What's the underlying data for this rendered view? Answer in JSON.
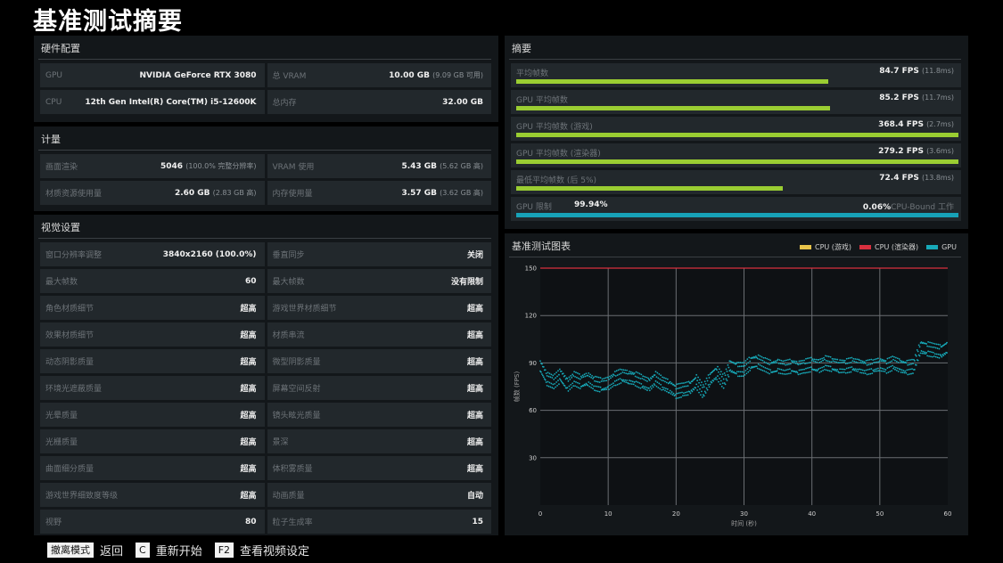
{
  "page_title": "基准测试摘要",
  "hardware": {
    "title": "硬件配置",
    "rows": [
      {
        "left_label": "GPU",
        "left_value": "NVIDIA GeForce RTX 3080",
        "left_sub": "",
        "right_label": "总 VRAM",
        "right_value": "10.00 GB",
        "right_sub": "(9.09 GB 可用)"
      },
      {
        "left_label": "CPU",
        "left_value": "12th Gen Intel(R) Core(TM) i5-12600K",
        "left_sub": "",
        "right_label": "总内存",
        "right_value": "32.00 GB",
        "right_sub": ""
      }
    ]
  },
  "metrics": {
    "title": "计量",
    "rows": [
      {
        "left_label": "画面渲染",
        "left_value": "5046",
        "left_sub": "(100.0% 完整分辨率)",
        "right_label": "VRAM 使用",
        "right_value": "5.43 GB",
        "right_sub": "(5.62 GB 高)"
      },
      {
        "left_label": "材质资源使用量",
        "left_value": "2.60 GB",
        "left_sub": "(2.83 GB 高)",
        "right_label": "内存使用量",
        "right_value": "3.57 GB",
        "right_sub": "(3.62 GB 高)"
      }
    ]
  },
  "visual": {
    "title": "视觉设置",
    "rows": [
      {
        "left_label": "窗口分辨率调整",
        "left_value": "3840x2160 (100.0%)",
        "right_label": "垂直同步",
        "right_value": "关闭"
      },
      {
        "left_label": "最大帧数",
        "left_value": "60",
        "right_label": "最大帧数",
        "right_value": "没有限制"
      },
      {
        "left_label": "角色材质细节",
        "left_value": "超高",
        "right_label": "游戏世界材质细节",
        "right_value": "超高"
      },
      {
        "left_label": "效果材质细节",
        "left_value": "超高",
        "right_label": "材质串流",
        "right_value": "超高"
      },
      {
        "left_label": "动态阴影质量",
        "left_value": "超高",
        "right_label": "微型阴影质量",
        "right_value": "超高"
      },
      {
        "left_label": "环境光遮蔽质量",
        "left_value": "超高",
        "right_label": "屏幕空间反射",
        "right_value": "超高"
      },
      {
        "left_label": "光晕质量",
        "left_value": "超高",
        "right_label": "镜头眩光质量",
        "right_value": "超高"
      },
      {
        "left_label": "光栅质量",
        "left_value": "超高",
        "right_label": "景深",
        "right_value": "超高"
      },
      {
        "left_label": "曲面细分质量",
        "left_value": "超高",
        "right_label": "体积雾质量",
        "right_value": "超高"
      },
      {
        "left_label": "游戏世界细致度等级",
        "left_value": "超高",
        "right_label": "动画质量",
        "right_value": "自动"
      },
      {
        "left_label": "视野",
        "left_value": "80",
        "right_label": "粒子生成率",
        "right_value": "15"
      }
    ]
  },
  "summary": {
    "title": "摘要",
    "rows": [
      {
        "label": "平均帧数",
        "value": "84.7 FPS",
        "sub": "(11.8ms)",
        "bar_pct": 70.6
      },
      {
        "label": "GPU 平均帧数",
        "value": "85.2 FPS",
        "sub": "(11.7ms)",
        "bar_pct": 71.0
      },
      {
        "label": "GPU 平均帧数 (游戏)",
        "value": "368.4 FPS",
        "sub": "(2.7ms)",
        "bar_pct": 100
      },
      {
        "label": "GPU 平均帧数 (渲染器)",
        "value": "279.2 FPS",
        "sub": "(3.6ms)",
        "bar_pct": 100
      },
      {
        "label": "最低平均帧数 (后 5%)",
        "value": "72.4 FPS",
        "sub": "(13.8ms)",
        "bar_pct": 60.3
      }
    ],
    "bound": {
      "label": "GPU 限制",
      "gpu_pct": "99.94%",
      "cpu_pct": "0.06%",
      "cpu_label": "CPU-Bound 工作",
      "bar_pct": 100
    }
  },
  "chart_panel": {
    "title": "基准测试图表",
    "legend": [
      {
        "name": "CPU (游戏)",
        "color": "#e8c34a"
      },
      {
        "name": "CPU (渲染器)",
        "color": "#d9303f"
      },
      {
        "name": "GPU",
        "color": "#17a9b8"
      }
    ]
  },
  "chart_data": {
    "type": "scatter",
    "title": "基准测试图表",
    "xlabel": "时间 (秒)",
    "ylabel": "帧数 (FPS)",
    "xlim": [
      0,
      60
    ],
    "ylim": [
      0,
      150
    ],
    "x_ticks": [
      "0",
      "10",
      "20",
      "30",
      "40",
      "50",
      "60"
    ],
    "y_ticks": [
      "30",
      "60",
      "90",
      "120",
      "150"
    ],
    "grid": true,
    "legend_position": "top-right",
    "series": [
      {
        "name": "CPU (游戏)",
        "color": "#e8c34a",
        "note": "off-scale (>150)",
        "x": [],
        "y": []
      },
      {
        "name": "CPU (渲染器)",
        "color": "#d9303f",
        "note": "clipped at top 150",
        "x": [
          0,
          60
        ],
        "y": [
          150,
          150
        ]
      },
      {
        "name": "GPU",
        "color": "#17a9b8",
        "x": [
          0,
          1,
          2,
          3,
          4,
          5,
          6,
          7,
          8,
          9,
          10,
          11,
          12,
          13,
          14,
          15,
          16,
          17,
          18,
          19,
          20,
          21,
          22,
          23,
          24,
          25,
          26,
          27,
          28,
          29,
          30,
          31,
          32,
          33,
          34,
          35,
          36,
          37,
          38,
          39,
          40,
          41,
          42,
          43,
          44,
          45,
          46,
          47,
          48,
          49,
          50,
          51,
          52,
          53,
          54,
          55,
          56,
          57,
          58,
          59,
          60
        ],
        "y": [
          88,
          80,
          78,
          82,
          76,
          80,
          78,
          80,
          77,
          76,
          77,
          80,
          82,
          81,
          80,
          78,
          76,
          80,
          77,
          75,
          72,
          73,
          74,
          78,
          72,
          80,
          84,
          78,
          88,
          86,
          86,
          90,
          91,
          89,
          87,
          88,
          87,
          88,
          87,
          88,
          89,
          88,
          90,
          89,
          88,
          88,
          89,
          88,
          87,
          88,
          89,
          88,
          90,
          88,
          87,
          88,
          100,
          99,
          98,
          97,
          100
        ]
      }
    ]
  },
  "footer": {
    "items": [
      {
        "key": "撤离模式",
        "action": "返回"
      },
      {
        "key": "C",
        "action": "重新开始"
      },
      {
        "key": "F2",
        "action": "查看视频设定"
      }
    ]
  }
}
